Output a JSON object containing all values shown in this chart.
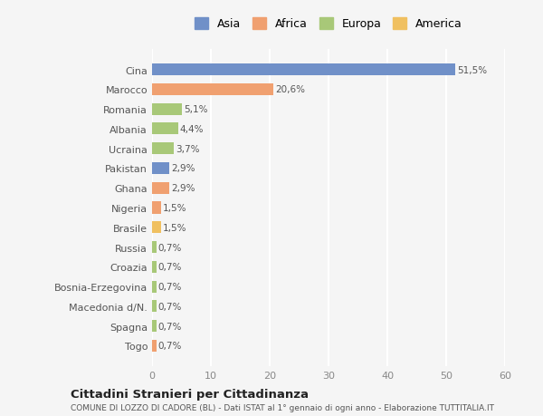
{
  "categories": [
    "Togo",
    "Spagna",
    "Macedonia d/N.",
    "Bosnia-Erzegovina",
    "Croazia",
    "Russia",
    "Brasile",
    "Nigeria",
    "Ghana",
    "Pakistan",
    "Ucraina",
    "Albania",
    "Romania",
    "Marocco",
    "Cina"
  ],
  "values": [
    0.7,
    0.7,
    0.7,
    0.7,
    0.7,
    0.7,
    1.5,
    1.5,
    2.9,
    2.9,
    3.7,
    4.4,
    5.1,
    20.6,
    51.5
  ],
  "labels": [
    "0,7%",
    "0,7%",
    "0,7%",
    "0,7%",
    "0,7%",
    "0,7%",
    "1,5%",
    "1,5%",
    "2,9%",
    "2,9%",
    "3,7%",
    "4,4%",
    "5,1%",
    "20,6%",
    "51,5%"
  ],
  "colors": [
    "#f0a070",
    "#a8c878",
    "#a8c878",
    "#a8c878",
    "#a8c878",
    "#a8c878",
    "#f0c060",
    "#f0a070",
    "#f0a070",
    "#7090c8",
    "#a8c878",
    "#a8c878",
    "#a8c878",
    "#f0a070",
    "#7090c8"
  ],
  "legend": [
    {
      "label": "Asia",
      "color": "#7090c8"
    },
    {
      "label": "Africa",
      "color": "#f0a070"
    },
    {
      "label": "Europa",
      "color": "#a8c878"
    },
    {
      "label": "America",
      "color": "#f0c060"
    }
  ],
  "xlim": [
    0,
    60
  ],
  "xticks": [
    0,
    10,
    20,
    30,
    40,
    50,
    60
  ],
  "title1": "Cittadini Stranieri per Cittadinanza",
  "title2": "COMUNE DI LOZZO DI CADORE (BL) - Dati ISTAT al 1° gennaio di ogni anno - Elaborazione TUTTITALIA.IT",
  "bg_color": "#f5f5f5",
  "grid_color": "#ffffff"
}
